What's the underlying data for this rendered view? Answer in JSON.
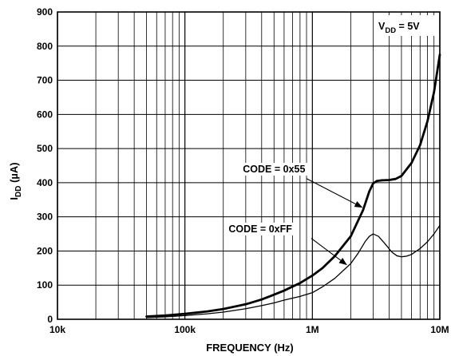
{
  "chart_data": {
    "type": "line",
    "xscale": "log",
    "xlim": [
      10000,
      10000000
    ],
    "ylim": [
      0,
      900
    ],
    "xlabel": "FREQUENCY (Hz)",
    "ylabel_main": "I",
    "ylabel_sub": "DD",
    "ylabel_unit": " (µA)",
    "grid": true,
    "x_ticks": [
      {
        "value": 10000,
        "label": "10k"
      },
      {
        "value": 100000,
        "label": "100k"
      },
      {
        "value": 1000000,
        "label": "1M"
      },
      {
        "value": 10000000,
        "label": "10M"
      }
    ],
    "y_ticks": [
      {
        "value": 0,
        "label": "0"
      },
      {
        "value": 100,
        "label": "100"
      },
      {
        "value": 200,
        "label": "200"
      },
      {
        "value": 300,
        "label": "300"
      },
      {
        "value": 400,
        "label": "400"
      },
      {
        "value": 500,
        "label": "500"
      },
      {
        "value": 600,
        "label": "600"
      },
      {
        "value": 700,
        "label": "700"
      },
      {
        "value": 800,
        "label": "800"
      },
      {
        "value": 900,
        "label": "900"
      }
    ],
    "condition": {
      "main": "V",
      "sub": "DD",
      "rest": " = 5V"
    },
    "series": [
      {
        "name": "CODE = 0x55",
        "stroke": "#000000",
        "width": 2.8,
        "points": [
          [
            50000,
            8
          ],
          [
            70000,
            11
          ],
          [
            100000,
            16
          ],
          [
            150000,
            23
          ],
          [
            200000,
            30
          ],
          [
            300000,
            44
          ],
          [
            400000,
            58
          ],
          [
            500000,
            72
          ],
          [
            600000,
            84
          ],
          [
            700000,
            96
          ],
          [
            800000,
            106
          ],
          [
            1000000,
            128
          ],
          [
            1200000,
            150
          ],
          [
            1500000,
            185
          ],
          [
            2000000,
            243
          ],
          [
            2500000,
            320
          ],
          [
            2800000,
            375
          ],
          [
            3000000,
            398
          ],
          [
            3200000,
            405
          ],
          [
            3500000,
            407
          ],
          [
            4000000,
            408
          ],
          [
            4500000,
            411
          ],
          [
            5000000,
            420
          ],
          [
            6000000,
            458
          ],
          [
            7000000,
            510
          ],
          [
            8000000,
            580
          ],
          [
            9000000,
            665
          ],
          [
            10000000,
            775
          ]
        ]
      },
      {
        "name": "CODE = 0xFF",
        "stroke": "#000000",
        "width": 1.3,
        "points": [
          [
            50000,
            5
          ],
          [
            70000,
            7
          ],
          [
            100000,
            11
          ],
          [
            150000,
            16
          ],
          [
            200000,
            21
          ],
          [
            300000,
            31
          ],
          [
            400000,
            40
          ],
          [
            500000,
            48
          ],
          [
            600000,
            56
          ],
          [
            700000,
            62
          ],
          [
            800000,
            67
          ],
          [
            1000000,
            78
          ],
          [
            1200000,
            95
          ],
          [
            1500000,
            120
          ],
          [
            2000000,
            163
          ],
          [
            2300000,
            195
          ],
          [
            2600000,
            228
          ],
          [
            2800000,
            243
          ],
          [
            3000000,
            250
          ],
          [
            3300000,
            243
          ],
          [
            3700000,
            222
          ],
          [
            4200000,
            197
          ],
          [
            4600000,
            186
          ],
          [
            5000000,
            183
          ],
          [
            5500000,
            185
          ],
          [
            6000000,
            190
          ],
          [
            7000000,
            207
          ],
          [
            8000000,
            227
          ],
          [
            9000000,
            250
          ],
          [
            10000000,
            275
          ]
        ]
      }
    ],
    "annotations": [
      {
        "text": "CODE = 0x55",
        "label_x": 285000,
        "label_y": 430,
        "arrow_from": [
          900000,
          412
        ],
        "arrow_to": [
          2450000,
          328
        ]
      },
      {
        "text": "CODE = 0xFF",
        "label_x": 220000,
        "label_y": 255,
        "arrow_from": [
          980000,
          237
        ],
        "arrow_to": [
          1850000,
          160
        ]
      }
    ]
  }
}
